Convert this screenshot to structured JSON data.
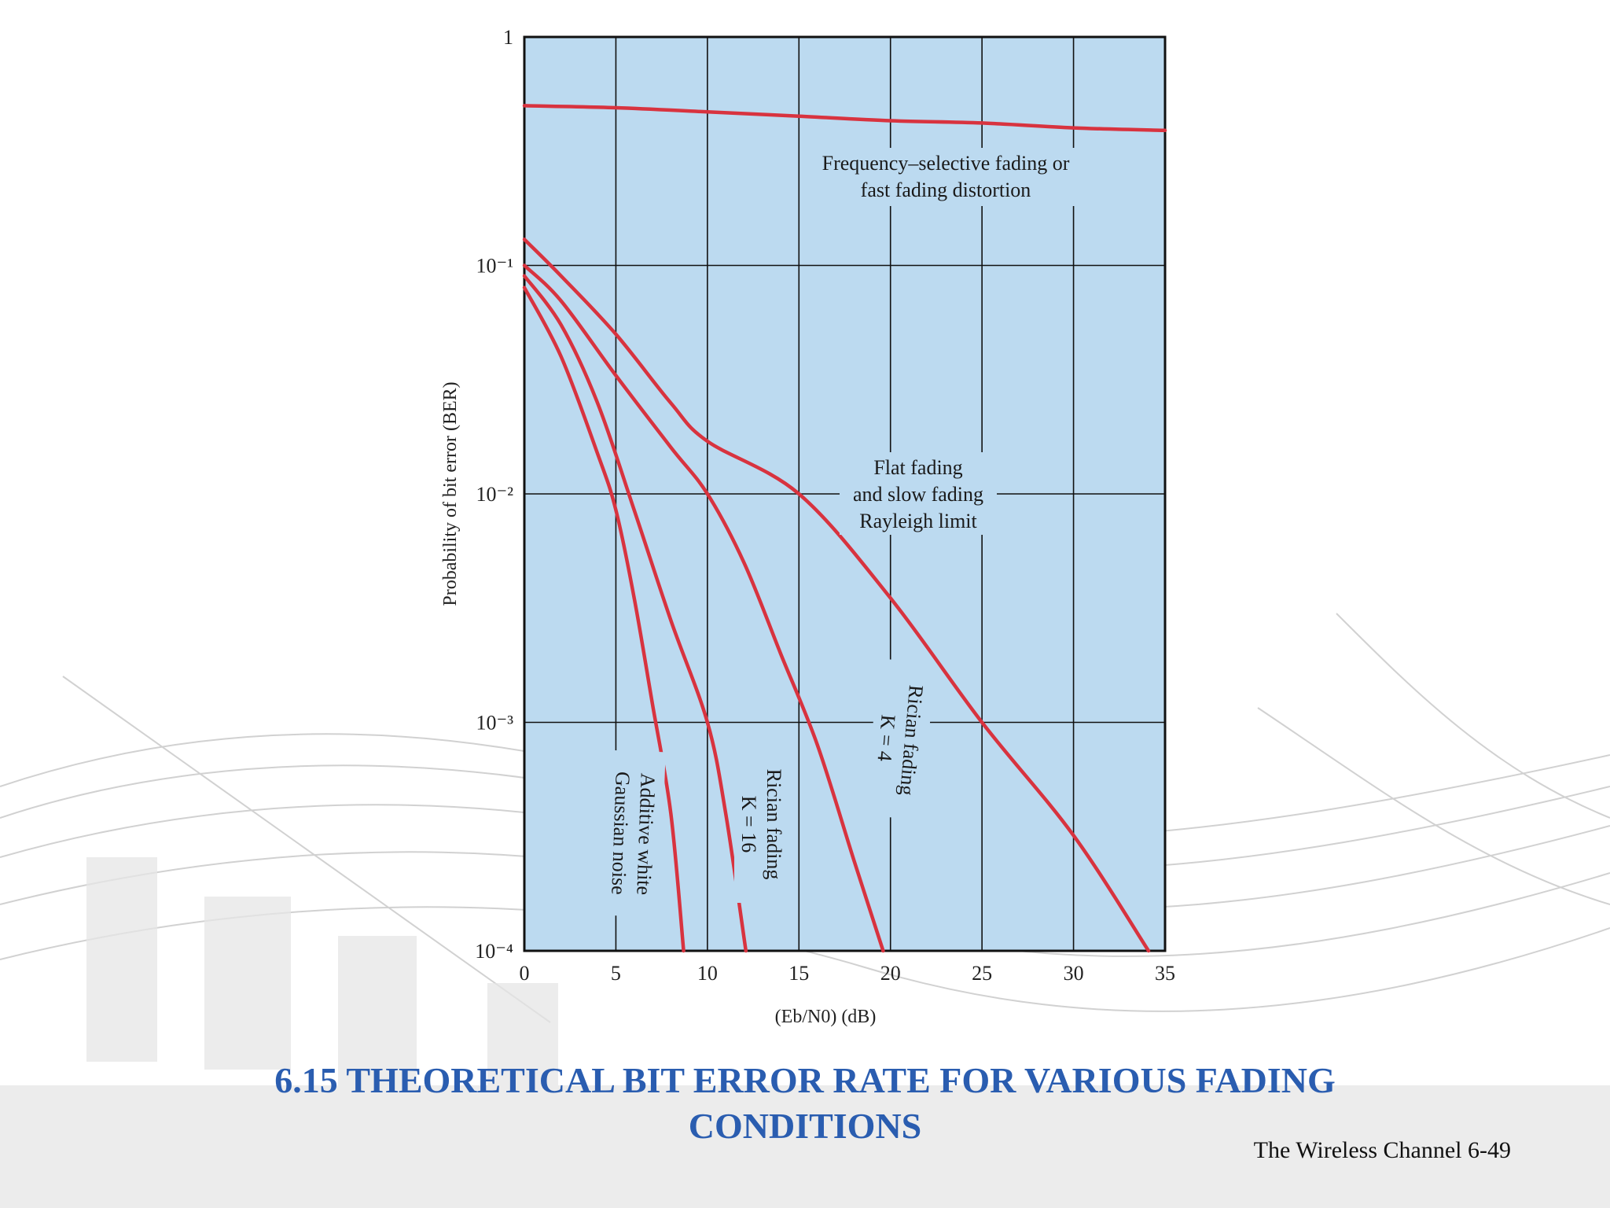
{
  "slide": {
    "title_line1": "6.15 THEORETICAL BIT ERROR RATE FOR VARIOUS FADING",
    "title_line2": "CONDITIONS",
    "footer": "The Wireless Channel 6-49"
  },
  "colors": {
    "plot_bg": "#bcdaf0",
    "curve": "#d8333f",
    "title": "#2a5db0",
    "grid": "#111111"
  },
  "chart_data": {
    "type": "line",
    "title": "",
    "xlabel": "(Eb/N0) (dB)",
    "ylabel": "Probability of bit error (BER)",
    "xlim": [
      0,
      35
    ],
    "ylim": [
      0.0001,
      1
    ],
    "y_scale": "log",
    "grid": true,
    "x_ticks": [
      "0",
      "5",
      "10",
      "15",
      "20",
      "25",
      "30",
      "35"
    ],
    "y_ticks": [
      "1",
      "10⁻¹",
      "10⁻²",
      "10⁻³",
      "10⁻⁴"
    ],
    "series": [
      {
        "name": "Frequency-selective fading or fast fading distortion",
        "x": [
          0,
          5,
          10,
          15,
          20,
          25,
          30,
          35
        ],
        "y": [
          0.5,
          0.49,
          0.47,
          0.45,
          0.43,
          0.42,
          0.4,
          0.39
        ]
      },
      {
        "name": "Flat fading and slow fading Rayleigh limit",
        "x": [
          0,
          2,
          5,
          8,
          10,
          15,
          20,
          25,
          30,
          34.1
        ],
        "y": [
          0.13,
          0.09,
          0.05,
          0.025,
          0.017,
          0.01,
          0.0035,
          0.001,
          0.00032,
          0.0001
        ]
      },
      {
        "name": "Rician fading K = 4",
        "x": [
          0,
          2,
          5,
          8,
          10,
          12,
          14,
          16,
          18,
          19.6
        ],
        "y": [
          0.1,
          0.07,
          0.033,
          0.016,
          0.01,
          0.005,
          0.002,
          0.0008,
          0.00025,
          0.0001
        ]
      },
      {
        "name": "Rician fading K = 16",
        "x": [
          0,
          2,
          4,
          6,
          8,
          10,
          11,
          12.1
        ],
        "y": [
          0.09,
          0.055,
          0.025,
          0.0085,
          0.0028,
          0.001,
          0.0004,
          0.0001
        ]
      },
      {
        "name": "Additive white Gaussian noise",
        "x": [
          0,
          2,
          4,
          5,
          6,
          7,
          8,
          8.7
        ],
        "y": [
          0.08,
          0.04,
          0.015,
          0.0085,
          0.0035,
          0.0012,
          0.0004,
          0.0001
        ]
      }
    ],
    "annotations": {
      "freq_line1": "Frequency–selective fading or",
      "freq_line2": "fast fading distortion",
      "flat_line1": "Flat fading",
      "flat_line2": "and slow fading",
      "flat_line3": "Rayleigh limit",
      "k4_line1": "Rician fading",
      "k4_line2": "K = 4",
      "k16_line1": "Rician fading",
      "k16_line2": "K = 16",
      "awgn_line1": "Additive white",
      "awgn_line2": "Gaussian noise"
    }
  }
}
